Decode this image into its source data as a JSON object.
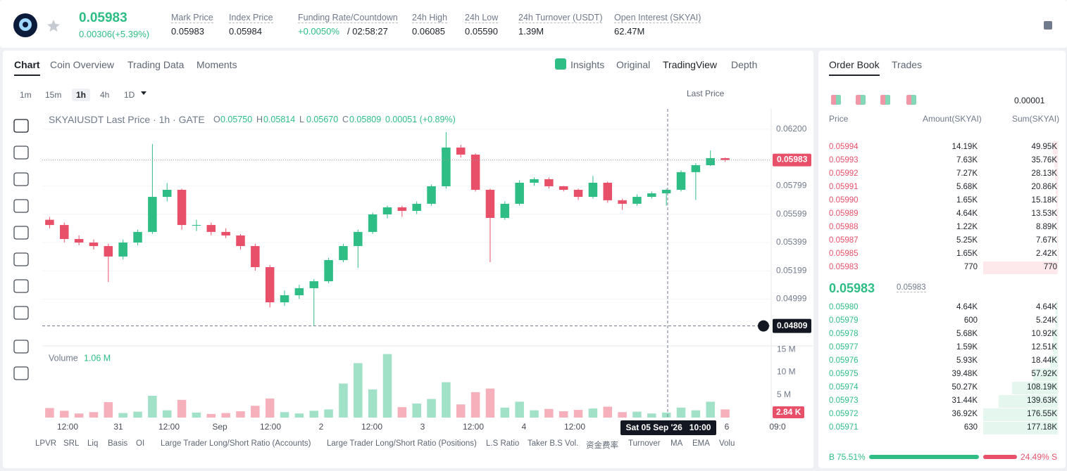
{
  "header": {
    "price": "0.05983",
    "change": "0.00306(+5.39%)",
    "stats": [
      {
        "label": "Mark Price",
        "value": "0.05983"
      },
      {
        "label": "Index Price",
        "value": "0.05984"
      },
      {
        "label": "Funding Rate/Countdown",
        "value": "+0.0050%",
        "extra": "/ 02:58:27"
      },
      {
        "label": "24h High",
        "value": "0.06085"
      },
      {
        "label": "24h Low",
        "value": "0.05590"
      },
      {
        "label": "24h Turnover (USDT)",
        "value": "1.39M"
      },
      {
        "label": "Open Interest (SKYAI)",
        "value": "62.47M"
      }
    ]
  },
  "tabs": [
    "Chart",
    "Coin Overview",
    "Trading Data",
    "Moments"
  ],
  "views": [
    "Insights",
    "Original",
    "TradingView",
    "Depth"
  ],
  "intervals": [
    "1m",
    "15m",
    "1h",
    "4h",
    "1D"
  ],
  "price_type": "Last Price",
  "legend": {
    "title": "SKYAIUSDT Last Price · 1h · GATE",
    "ohlc": [
      {
        "key": "O",
        "value": "0.05750"
      },
      {
        "key": "H",
        "value": "0.05814"
      },
      {
        "key": "L",
        "value": "0.05670"
      },
      {
        "key": "C",
        "value": "0.05809"
      }
    ],
    "change": "0.00051 (+0.89%)"
  },
  "chart_data": {
    "type": "candlestick",
    "candles": [
      [
        0.0556,
        0.0558,
        0.055,
        0.05523
      ],
      [
        0.05523,
        0.0554,
        0.054,
        0.05424
      ],
      [
        0.05424,
        0.0545,
        0.0538,
        0.05399
      ],
      [
        0.05399,
        0.0542,
        0.0535,
        0.05374
      ],
      [
        0.05374,
        0.0539,
        0.0512,
        0.053
      ],
      [
        0.053,
        0.0542,
        0.0528,
        0.05399
      ],
      [
        0.05399,
        0.0549,
        0.0538,
        0.05474
      ],
      [
        0.05474,
        0.06096,
        0.0546,
        0.05722
      ],
      [
        0.05722,
        0.0582,
        0.0569,
        0.05772
      ],
      [
        0.05772,
        0.0578,
        0.0549,
        0.05523
      ],
      [
        0.05523,
        0.0556,
        0.0548,
        0.05523
      ],
      [
        0.05523,
        0.0554,
        0.0545,
        0.05474
      ],
      [
        0.05474,
        0.055,
        0.0543,
        0.05449
      ],
      [
        0.05449,
        0.0546,
        0.0535,
        0.05374
      ],
      [
        0.05374,
        0.0539,
        0.052,
        0.05225
      ],
      [
        0.05225,
        0.0524,
        0.0494,
        0.04976
      ],
      [
        0.04976,
        0.0506,
        0.0495,
        0.05026
      ],
      [
        0.05026,
        0.051,
        0.05,
        0.05076
      ],
      [
        0.05076,
        0.0514,
        0.04809,
        0.05125
      ],
      [
        0.05125,
        0.0529,
        0.0511,
        0.05275
      ],
      [
        0.05275,
        0.0539,
        0.0526,
        0.05374
      ],
      [
        0.05374,
        0.0549,
        0.0522,
        0.05474
      ],
      [
        0.05474,
        0.0561,
        0.0546,
        0.05598
      ],
      [
        0.05598,
        0.0566,
        0.0557,
        0.05648
      ],
      [
        0.05648,
        0.0566,
        0.0558,
        0.05623
      ],
      [
        0.05623,
        0.0569,
        0.056,
        0.05673
      ],
      [
        0.05673,
        0.0581,
        0.0566,
        0.05797
      ],
      [
        0.05797,
        0.0618,
        0.0578,
        0.06071
      ],
      [
        0.06071,
        0.0609,
        0.06,
        0.06021
      ],
      [
        0.06021,
        0.0603,
        0.0576,
        0.05772
      ],
      [
        0.05772,
        0.0578,
        0.0526,
        0.05573
      ],
      [
        0.05573,
        0.0569,
        0.0556,
        0.05673
      ],
      [
        0.05673,
        0.0584,
        0.0566,
        0.05822
      ],
      [
        0.05822,
        0.0586,
        0.058,
        0.05847
      ],
      [
        0.05847,
        0.0586,
        0.0578,
        0.05797
      ],
      [
        0.05797,
        0.058,
        0.0576,
        0.05772
      ],
      [
        0.05772,
        0.0578,
        0.057,
        0.05722
      ],
      [
        0.05722,
        0.0587,
        0.0571,
        0.05822
      ],
      [
        0.05822,
        0.0583,
        0.0568,
        0.05698
      ],
      [
        0.05698,
        0.0571,
        0.0563,
        0.05673
      ],
      [
        0.05673,
        0.0574,
        0.0566,
        0.05722
      ],
      [
        0.05722,
        0.0576,
        0.0571,
        0.05747
      ],
      [
        0.05747,
        0.0578,
        0.0566,
        0.05772
      ],
      [
        0.05772,
        0.0591,
        0.0576,
        0.05897
      ],
      [
        0.05897,
        0.0596,
        0.057,
        0.05946
      ],
      [
        0.05946,
        0.0605,
        0.0594,
        0.05996
      ],
      [
        0.05996,
        0.06,
        0.0597,
        0.05983
      ]
    ],
    "volumes": [
      2.1,
      1.5,
      0.9,
      1.2,
      3.4,
      1.0,
      1.3,
      4.8,
      1.6,
      3.9,
      1.1,
      0.8,
      1.0,
      1.4,
      2.6,
      4.2,
      1.2,
      0.9,
      1.5,
      1.8,
      7.5,
      12.0,
      6.2,
      14.0,
      2.3,
      3.1,
      4.1,
      7.8,
      2.9,
      5.6,
      6.4,
      2.2,
      3.5,
      1.6,
      1.9,
      1.4,
      1.7,
      2.0,
      2.4,
      1.2,
      1.3,
      0.9,
      1.1,
      2.2,
      1.6,
      3.5,
      1.8
    ],
    "up_color": "#2ebd85",
    "down_color": "#e8506a",
    "ylim": [
      0.04668,
      0.06319
    ],
    "yticks": [
      {
        "value": 0.062,
        "label": "0.06200"
      },
      {
        "value": 0.05799,
        "label": "0.05799"
      },
      {
        "value": 0.05599,
        "label": "0.05599"
      },
      {
        "value": 0.05399,
        "label": "0.05399"
      },
      {
        "value": 0.05199,
        "label": "0.05199"
      },
      {
        "value": 0.04999,
        "label": "0.04999"
      }
    ],
    "last_price": {
      "value": 0.05983,
      "label": "0.05983"
    },
    "crosshair_price": {
      "value": 0.04809,
      "label": "0.04809"
    },
    "crosshair_time": "Sat 05 Sep '26   10:00",
    "volume_title": "Volume",
    "volume_value": "1.06 M",
    "vlim": [
      0,
      15.8
    ],
    "vticks": [
      {
        "value": 15,
        "label": "15 M"
      },
      {
        "value": 10,
        "label": "10 M"
      },
      {
        "value": 5,
        "label": "5 M"
      }
    ],
    "last_volume": "2.84 K",
    "xlabels": [
      "12:00",
      "31",
      "12:00",
      "Sep",
      "12:00",
      "2",
      "12:00",
      "3",
      "12:00",
      "4",
      "12:00",
      null,
      null,
      "6",
      "09:0"
    ]
  },
  "indicators": [
    "LPVR",
    "SRL",
    "Liq",
    "Basis",
    "OI",
    "Large Trader Long/Short Ratio (Accounts)",
    "Large Trader Long/Short Ratio (Positions)",
    "L.S Ratio",
    "Taker B.S Vol.",
    "资金费率",
    "Turnover",
    "MA",
    "EMA",
    "Volu"
  ],
  "order_book": {
    "tabs": [
      "Order Book",
      "Trades"
    ],
    "precision": "0.00001",
    "headers": [
      "Price",
      "Amount(SKYAI)",
      "Sum(SKYAI)"
    ],
    "asks": [
      [
        "0.05994",
        "14.19K",
        "49.95K"
      ],
      [
        "0.05993",
        "7.63K",
        "35.76K"
      ],
      [
        "0.05992",
        "7.27K",
        "28.13K"
      ],
      [
        "0.05991",
        "5.68K",
        "20.86K"
      ],
      [
        "0.05990",
        "1.65K",
        "15.18K"
      ],
      [
        "0.05989",
        "4.64K",
        "13.53K"
      ],
      [
        "0.05988",
        "1.22K",
        "8.89K"
      ],
      [
        "0.05987",
        "5.25K",
        "7.67K"
      ],
      [
        "0.05985",
        "1.65K",
        "2.42K"
      ],
      [
        "0.05983",
        "770",
        "770"
      ]
    ],
    "mid": "0.05983",
    "mark": "0.05983",
    "bids": [
      [
        "0.05980",
        "4.64K",
        "4.64K"
      ],
      [
        "0.05979",
        "600",
        "5.24K"
      ],
      [
        "0.05978",
        "5.68K",
        "10.92K"
      ],
      [
        "0.05977",
        "1.59K",
        "12.51K"
      ],
      [
        "0.05976",
        "5.93K",
        "18.44K"
      ],
      [
        "0.05975",
        "39.48K",
        "57.92K"
      ],
      [
        "0.05974",
        "50.27K",
        "108.19K"
      ],
      [
        "0.05973",
        "31.44K",
        "139.63K"
      ],
      [
        "0.05972",
        "36.92K",
        "176.55K"
      ],
      [
        "0.05971",
        "630",
        "177.18K"
      ]
    ],
    "buy_label": "B",
    "buy": 75.51,
    "buy_text": "75.51%",
    "sell_label": "S",
    "sell": 24.49,
    "sell_text": "24.49%"
  }
}
